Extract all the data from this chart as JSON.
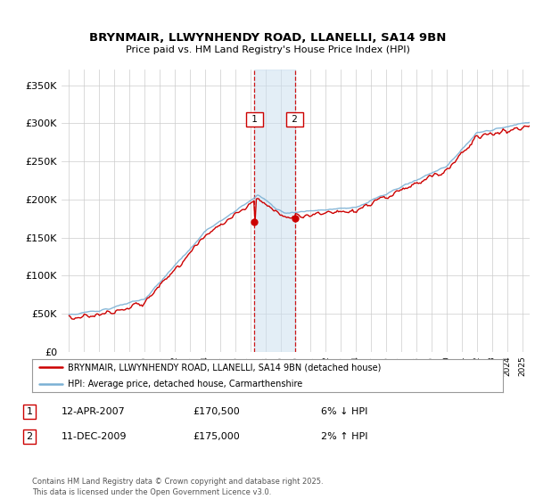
{
  "title": "BRYNMAIR, LLWYNHENDY ROAD, LLANELLI, SA14 9BN",
  "subtitle": "Price paid vs. HM Land Registry's House Price Index (HPI)",
  "background_color": "#ffffff",
  "plot_bg_color": "#ffffff",
  "grid_color": "#cccccc",
  "ylabel_ticks": [
    "£0",
    "£50K",
    "£100K",
    "£150K",
    "£200K",
    "£250K",
    "£300K",
    "£350K"
  ],
  "ytick_values": [
    0,
    50000,
    100000,
    150000,
    200000,
    250000,
    300000,
    350000
  ],
  "ylim": [
    0,
    370000
  ],
  "xlim_start": 1994.5,
  "xlim_end": 2025.5,
  "sale1_x": 2007.28,
  "sale1_y": 170500,
  "sale2_x": 2009.95,
  "sale2_y": 175000,
  "shade_color": "#cce0f0",
  "shade_alpha": 0.55,
  "dashed_color": "#cc0000",
  "hpi_color": "#7ab0d4",
  "price_color": "#cc0000",
  "legend_label_price": "BRYNMAIR, LLWYNHENDY ROAD, LLANELLI, SA14 9BN (detached house)",
  "legend_label_hpi": "HPI: Average price, detached house, Carmarthenshire",
  "footer": "Contains HM Land Registry data © Crown copyright and database right 2025.\nThis data is licensed under the Open Government Licence v3.0.",
  "table_rows": [
    {
      "num": "1",
      "date": "12-APR-2007",
      "price": "£170,500",
      "note": "6% ↓ HPI"
    },
    {
      "num": "2",
      "date": "11-DEC-2009",
      "price": "£175,000",
      "note": "2% ↑ HPI"
    }
  ]
}
